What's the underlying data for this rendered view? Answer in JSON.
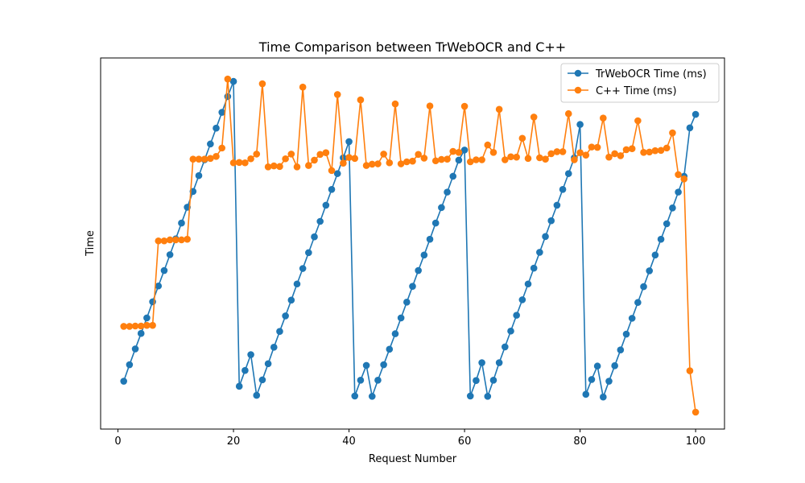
{
  "chart_data": {
    "type": "line",
    "title": "Time Comparison between TrWebOCR and C++",
    "xlabel": "Request Number",
    "ylabel": "Time",
    "xlim": [
      -3,
      105
    ],
    "ylim": [
      0,
      1
    ],
    "x_ticks": [
      0,
      20,
      40,
      60,
      80,
      100
    ],
    "y_ticks_shown": false,
    "grid": false,
    "legend_position": "top-right",
    "x": [
      1,
      2,
      3,
      4,
      5,
      6,
      7,
      8,
      9,
      10,
      11,
      12,
      13,
      14,
      15,
      16,
      17,
      18,
      19,
      20,
      21,
      22,
      23,
      24,
      25,
      26,
      27,
      28,
      29,
      30,
      31,
      32,
      33,
      34,
      35,
      36,
      37,
      38,
      39,
      40,
      41,
      42,
      43,
      44,
      45,
      46,
      47,
      48,
      49,
      50,
      51,
      52,
      53,
      54,
      55,
      56,
      57,
      58,
      59,
      60,
      61,
      62,
      63,
      64,
      65,
      66,
      67,
      68,
      69,
      70,
      71,
      72,
      73,
      74,
      75,
      76,
      77,
      78,
      79,
      80,
      81,
      82,
      83,
      84,
      85,
      86,
      87,
      88,
      89,
      90,
      91,
      92,
      93,
      94,
      95,
      96,
      97,
      98,
      99,
      100
    ],
    "series": [
      {
        "name": "TrWebOCR Time (ms)",
        "color": "#1f77b4",
        "values": [
          0.092,
          0.141,
          0.188,
          0.234,
          0.28,
          0.328,
          0.375,
          0.421,
          0.468,
          0.515,
          0.562,
          0.609,
          0.656,
          0.703,
          0.75,
          0.797,
          0.844,
          0.891,
          0.938,
          0.983,
          0.077,
          0.124,
          0.171,
          0.05,
          0.096,
          0.144,
          0.193,
          0.24,
          0.286,
          0.333,
          0.381,
          0.427,
          0.474,
          0.521,
          0.567,
          0.615,
          0.662,
          0.709,
          0.756,
          0.804,
          0.048,
          0.095,
          0.139,
          0.047,
          0.095,
          0.141,
          0.187,
          0.233,
          0.28,
          0.327,
          0.374,
          0.421,
          0.467,
          0.514,
          0.562,
          0.608,
          0.654,
          0.701,
          0.749,
          0.779,
          0.048,
          0.094,
          0.147,
          0.047,
          0.095,
          0.147,
          0.194,
          0.241,
          0.288,
          0.334,
          0.381,
          0.428,
          0.475,
          0.522,
          0.569,
          0.615,
          0.662,
          0.709,
          0.756,
          0.855,
          0.053,
          0.097,
          0.137,
          0.045,
          0.092,
          0.138,
          0.185,
          0.232,
          0.279,
          0.326,
          0.373,
          0.42,
          0.467,
          0.514,
          0.56,
          0.607,
          0.654,
          0.701,
          0.845,
          0.885
        ]
      },
      {
        "name": "C++ Time (ms)",
        "color": "#ff7f0e",
        "values": [
          0.255,
          0.255,
          0.256,
          0.256,
          0.258,
          0.258,
          0.509,
          0.509,
          0.512,
          0.512,
          0.512,
          0.514,
          0.752,
          0.752,
          0.752,
          0.754,
          0.76,
          0.785,
          0.99,
          0.741,
          0.742,
          0.741,
          0.753,
          0.767,
          0.976,
          0.729,
          0.732,
          0.73,
          0.753,
          0.767,
          0.729,
          0.966,
          0.733,
          0.749,
          0.766,
          0.771,
          0.718,
          0.944,
          0.74,
          0.757,
          0.754,
          0.928,
          0.733,
          0.737,
          0.738,
          0.767,
          0.741,
          0.916,
          0.738,
          0.744,
          0.746,
          0.766,
          0.755,
          0.91,
          0.747,
          0.751,
          0.752,
          0.775,
          0.772,
          0.909,
          0.744,
          0.75,
          0.75,
          0.794,
          0.772,
          0.9,
          0.75,
          0.759,
          0.758,
          0.814,
          0.754,
          0.877,
          0.756,
          0.752,
          0.768,
          0.774,
          0.774,
          0.887,
          0.75,
          0.771,
          0.764,
          0.788,
          0.787,
          0.874,
          0.758,
          0.768,
          0.762,
          0.78,
          0.783,
          0.866,
          0.772,
          0.773,
          0.777,
          0.778,
          0.785,
          0.83,
          0.706,
          0.693,
          0.123,
          0.0
        ]
      }
    ],
    "last_value_overrides_note": ""
  }
}
